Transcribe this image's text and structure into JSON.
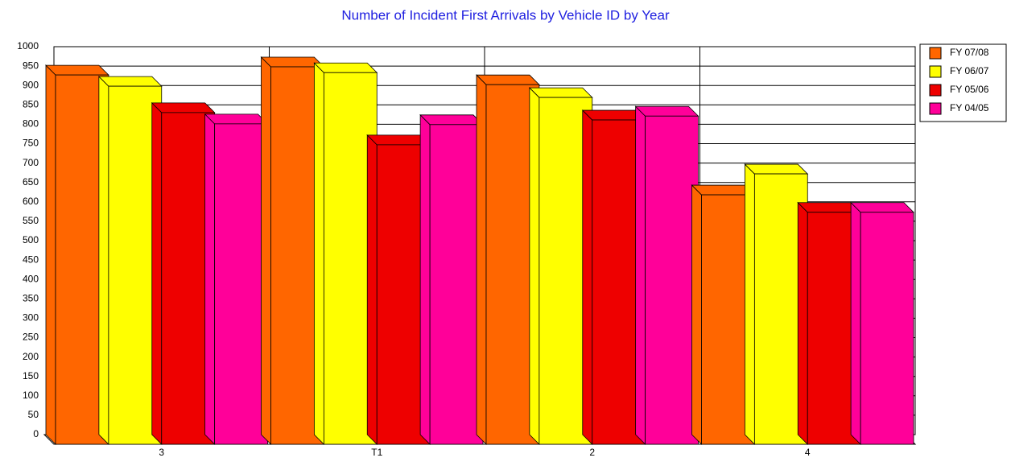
{
  "chart_data": {
    "type": "bar3d",
    "title": "Number of Incident First Arrivals by Vehicle ID by Year",
    "categories": [
      "3",
      "T1",
      "2",
      "4"
    ],
    "series": [
      {
        "name": "FY 07/08",
        "color": "#ff6600",
        "values": [
          952,
          973,
          927,
          643
        ]
      },
      {
        "name": "FY 06/07",
        "color": "#ffff00",
        "values": [
          923,
          958,
          894,
          697
        ]
      },
      {
        "name": "FY 05/06",
        "color": "#ee0000",
        "values": [
          855,
          772,
          836,
          598
        ]
      },
      {
        "name": "FY 04/05",
        "color": "#ff0099",
        "values": [
          826,
          824,
          846,
          598
        ]
      }
    ],
    "ylim": [
      0,
      1000
    ],
    "yticks": [
      0,
      50,
      100,
      150,
      200,
      250,
      300,
      350,
      400,
      450,
      500,
      550,
      600,
      650,
      700,
      750,
      800,
      850,
      900,
      950,
      1000
    ],
    "grid": true,
    "legend": "right"
  }
}
